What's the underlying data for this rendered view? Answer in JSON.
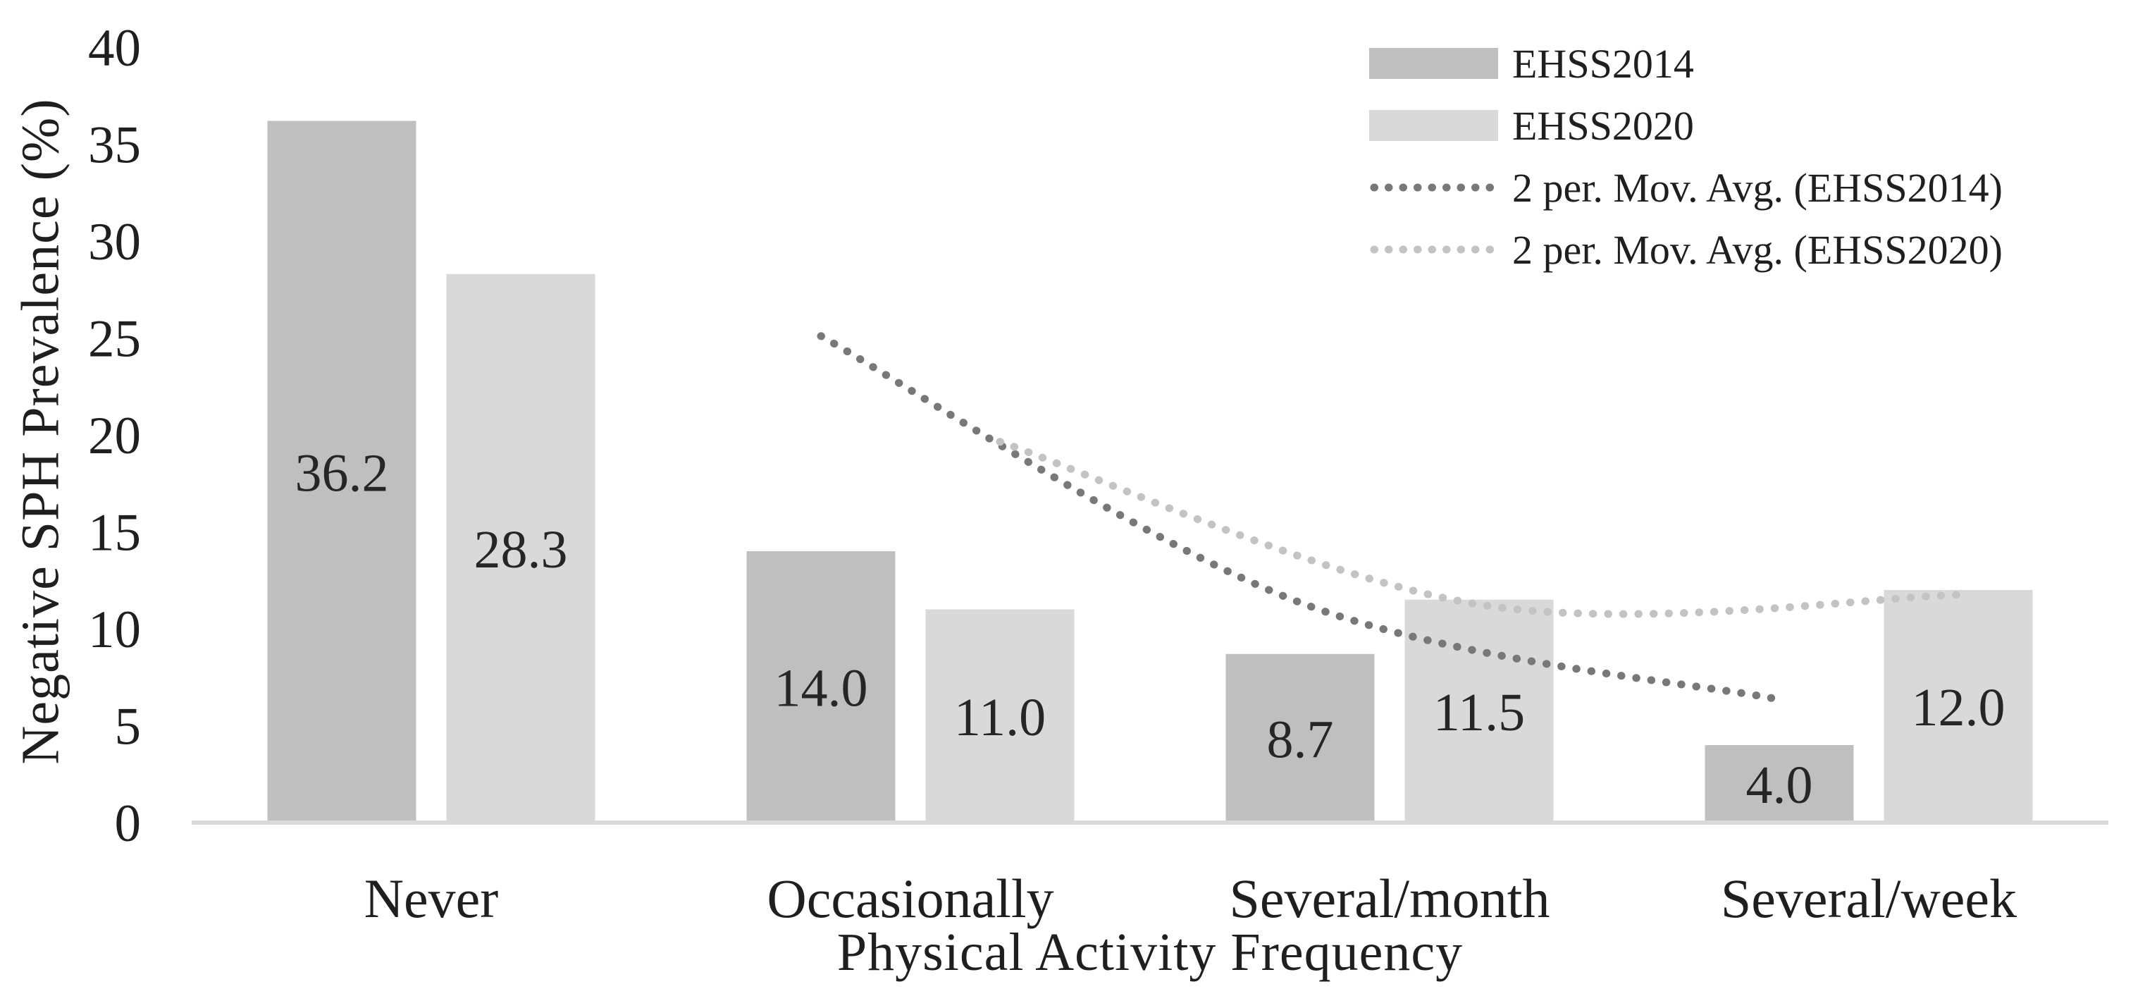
{
  "figure": {
    "y_axis_title": "Negative SPH Prevalence (%)",
    "x_axis_title": "Physical Activity Frequency"
  },
  "chart_data": {
    "type": "bar",
    "title": "",
    "xlabel": "Physical Activity Frequency",
    "ylabel": "Negative SPH Prevalence (%)",
    "categories": [
      "Never",
      "Occasionally",
      "Several/month",
      "Several/week"
    ],
    "series": [
      {
        "name": "EHSS2014",
        "color": "#bfbfbf",
        "values": [
          36.2,
          14.0,
          8.7,
          4.0
        ],
        "data_labels": [
          "36.2",
          "14.0",
          "8.7",
          "4.0"
        ]
      },
      {
        "name": "EHSS2020",
        "color": "#d9d9d9",
        "values": [
          28.3,
          11.0,
          11.5,
          12.0
        ],
        "data_labels": [
          "28.3",
          "11.0",
          "11.5",
          "12.0"
        ]
      }
    ],
    "trendlines": [
      {
        "name": "2 per. Mov. Avg. (EHSS2014)",
        "series_index": 0,
        "color": "#787878",
        "period": 2,
        "values": [
          25.1,
          11.35,
          6.35
        ]
      },
      {
        "name": "2 per. Mov. Avg. (EHSS2020)",
        "series_index": 1,
        "color": "#c3c3c3",
        "period": 2,
        "values": [
          19.65,
          11.25,
          11.75
        ]
      }
    ],
    "ylim": [
      0,
      40
    ],
    "yticks": [
      0,
      5,
      10,
      15,
      20,
      25,
      30,
      35,
      40
    ],
    "grid": false,
    "legend_position": "top-right",
    "axis_line_color": "#d9d9d9",
    "text_color": "#1f1f1f",
    "data_label_color": "#262626"
  }
}
